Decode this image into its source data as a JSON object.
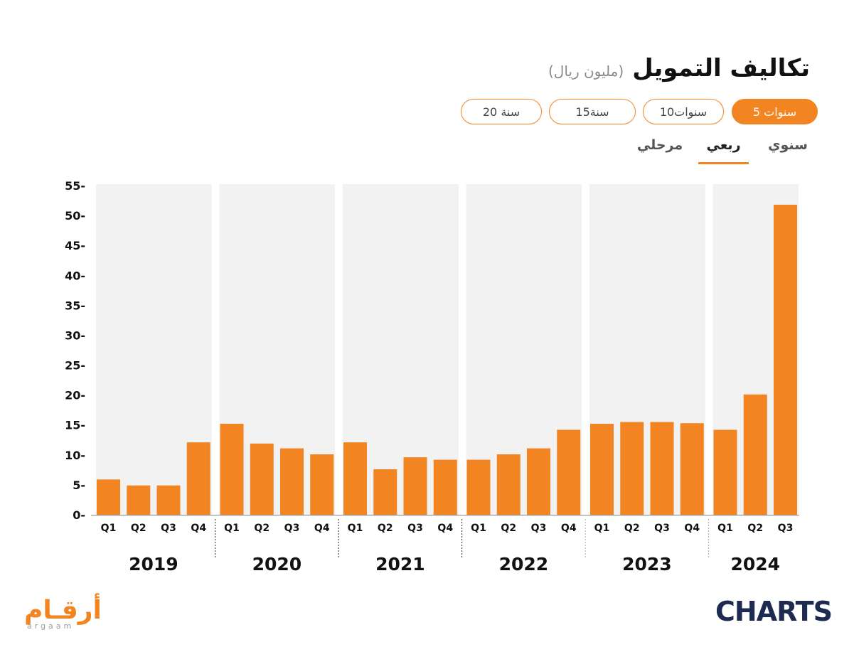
{
  "header": {
    "title": "تكاليف التمويل",
    "unit": "(مليون ريال)"
  },
  "range_pills": [
    {
      "label": "5 سنوات",
      "active": true
    },
    {
      "label": "10سنوات",
      "active": false
    },
    {
      "label": "15سنة",
      "active": false
    },
    {
      "label": "20 سنة",
      "active": false
    }
  ],
  "view_tabs": [
    {
      "label": "سنوي",
      "active": false
    },
    {
      "label": "ربعي",
      "active": true
    },
    {
      "label": "مرحلي",
      "active": false
    }
  ],
  "colors": {
    "bar": "#f28522",
    "band": "#f2f2f2",
    "accent": "#f28522",
    "brand_dark": "#1e2a50"
  },
  "chart_data": {
    "type": "bar",
    "title": "تكاليف التمويل",
    "ylabel": "(مليون ريال)",
    "ylim": [
      0,
      55
    ],
    "yticks": [
      0,
      5,
      10,
      15,
      20,
      25,
      30,
      35,
      40,
      45,
      50,
      55
    ],
    "grid": false,
    "groups": [
      {
        "year": "2019",
        "quarters": [
          "Q1",
          "Q2",
          "Q3",
          "Q4"
        ],
        "values": [
          5.9,
          4.9,
          4.9,
          12.1
        ]
      },
      {
        "year": "2020",
        "quarters": [
          "Q1",
          "Q2",
          "Q3",
          "Q4"
        ],
        "values": [
          15.2,
          11.9,
          11.1,
          10.1
        ]
      },
      {
        "year": "2021",
        "quarters": [
          "Q1",
          "Q2",
          "Q3",
          "Q4"
        ],
        "values": [
          12.1,
          7.6,
          9.6,
          9.2
        ]
      },
      {
        "year": "2022",
        "quarters": [
          "Q1",
          "Q2",
          "Q3",
          "Q4"
        ],
        "values": [
          9.2,
          10.1,
          11.1,
          14.2
        ]
      },
      {
        "year": "2023",
        "quarters": [
          "Q1",
          "Q2",
          "Q3",
          "Q4"
        ],
        "values": [
          15.2,
          15.5,
          15.5,
          15.3
        ]
      },
      {
        "year": "2024",
        "quarters": [
          "Q1",
          "Q2",
          "Q3"
        ],
        "values": [
          14.2,
          20.1,
          51.8
        ]
      }
    ]
  },
  "branding": {
    "argaam_ar": "أرقـام",
    "argaam_en": "argaam",
    "charts": "CHARTS"
  }
}
